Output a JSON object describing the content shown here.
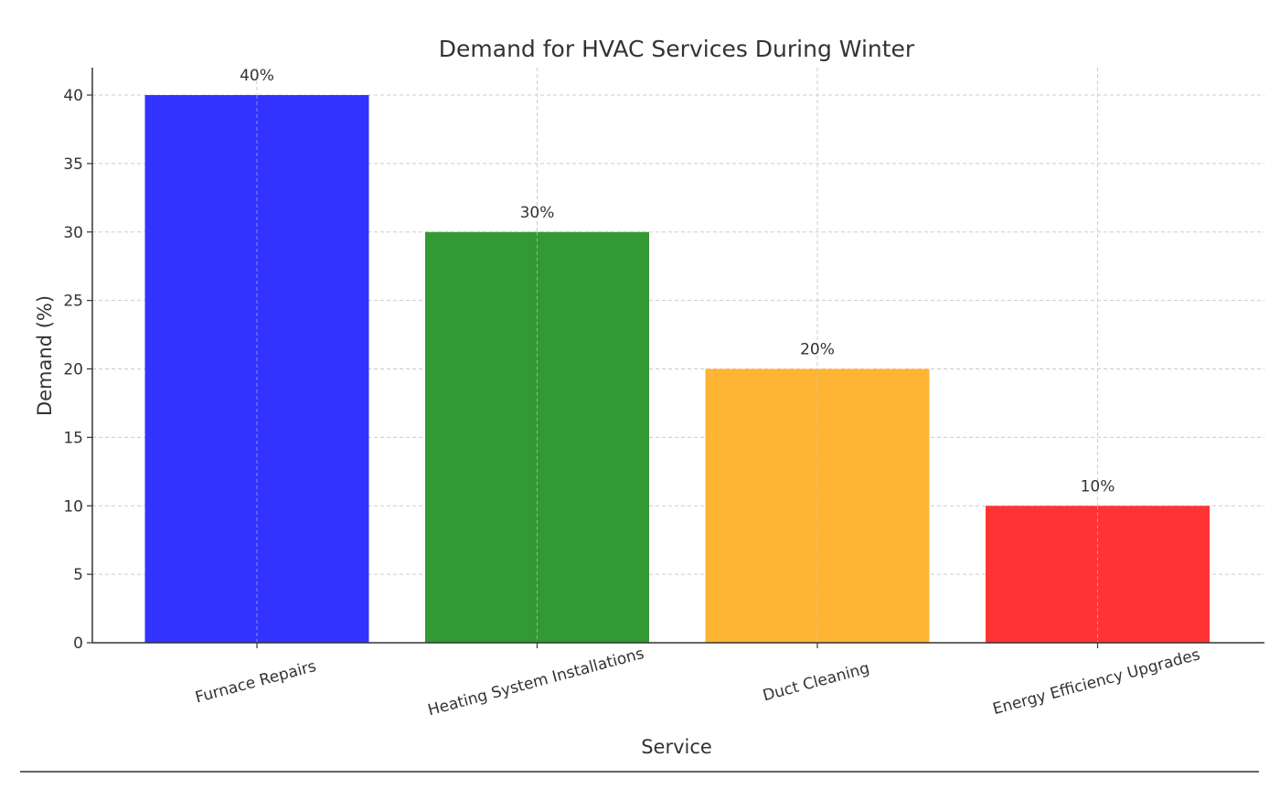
{
  "chart_data": {
    "type": "bar",
    "title": "Demand for HVAC Services During Winter",
    "xlabel": "Service",
    "ylabel": "Demand (%)",
    "categories": [
      "Furnace Repairs",
      "Heating System Installations",
      "Duct Cleaning",
      "Energy Efficiency Upgrades"
    ],
    "values": [
      40,
      30,
      20,
      10
    ],
    "data_labels": [
      "40%",
      "30%",
      "20%",
      "10%"
    ],
    "colors": [
      "#3333ff",
      "#339933",
      "#ffb433",
      "#ff3333"
    ],
    "ylim": [
      0,
      42
    ],
    "yticks": [
      0,
      5,
      10,
      15,
      20,
      25,
      30,
      35,
      40
    ],
    "grid": true
  }
}
